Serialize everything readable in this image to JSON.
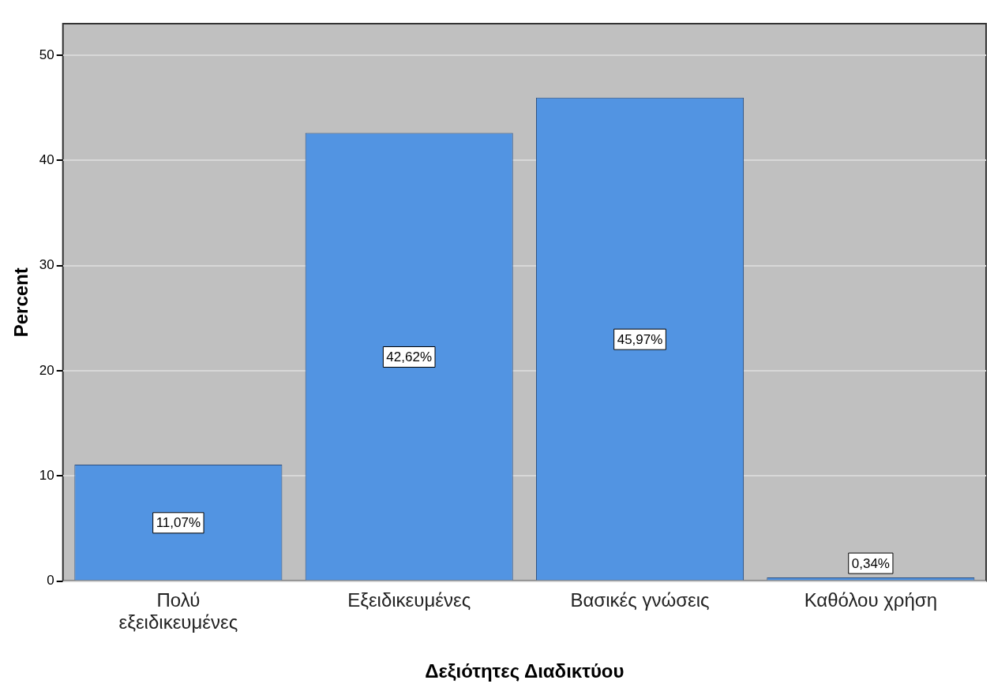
{
  "chart_data": {
    "type": "bar",
    "xlabel": "Δεξιότητες Διαδικτύου",
    "ylabel": "Percent",
    "categories": [
      "Πολύ εξειδικευμένες",
      "Εξειδικευμένες",
      "Βασικές γνώσεις",
      "Καθόλου χρήση"
    ],
    "values": [
      11.07,
      42.62,
      45.97,
      0.34
    ],
    "value_labels": [
      "11,07%",
      "42,62%",
      "45,97%",
      "0,34%"
    ],
    "color": "#5294e2",
    "ylim": [
      0,
      53
    ],
    "yticks": [
      0,
      10,
      20,
      30,
      40,
      50
    ],
    "grid": "y"
  }
}
